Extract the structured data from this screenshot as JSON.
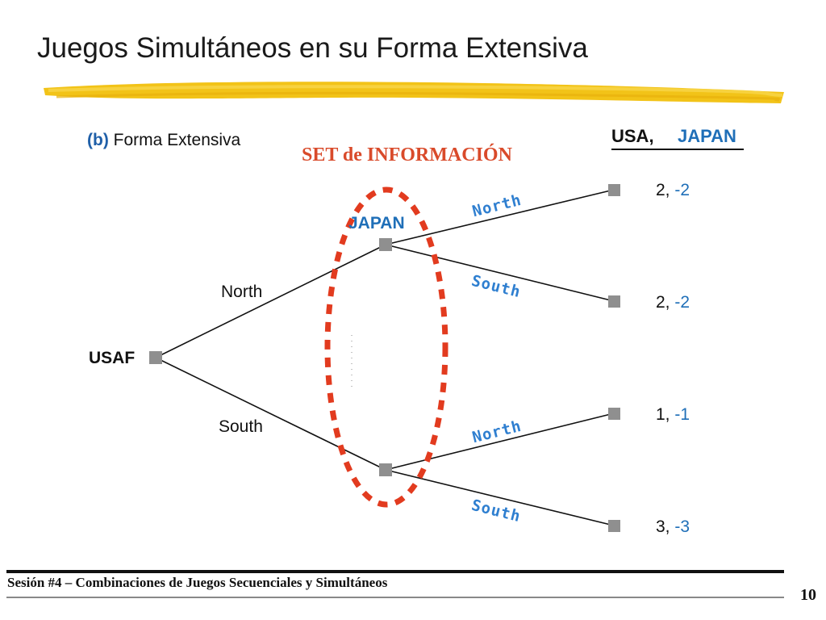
{
  "slide": {
    "title": "Juegos Simultáneos en su Forma Extensiva",
    "subtitle_tag": "(b)",
    "subtitle_text": "Forma Extensiva",
    "info_set_label": "SET de INFORMACIÓN",
    "page_number": "10",
    "footer": "Sesión #4 – Combinaciones de Juegos Secuenciales y Simultáneos"
  },
  "header": {
    "player1": "USA,",
    "player2": "JAPAN"
  },
  "tree": {
    "root_label": "USAF",
    "japan_label": "JAPAN",
    "usa_moves": {
      "north": "North",
      "south": "South"
    },
    "japan_moves": {
      "upper_north": "North",
      "upper_south": "South",
      "lower_north": "North",
      "lower_south": "South"
    },
    "payoffs": [
      {
        "p1": "2,",
        "p2": "-2"
      },
      {
        "p1": "2,",
        "p2": "-2"
      },
      {
        "p1": "1,",
        "p2": "-1"
      },
      {
        "p1": "3,",
        "p2": "-3"
      }
    ]
  },
  "colors": {
    "accent_blue": "#1f6fb8",
    "info_set_red": "#e23b1f",
    "title_bar_yellow": "#f2c318",
    "node_gray": "#8f8f8f"
  }
}
